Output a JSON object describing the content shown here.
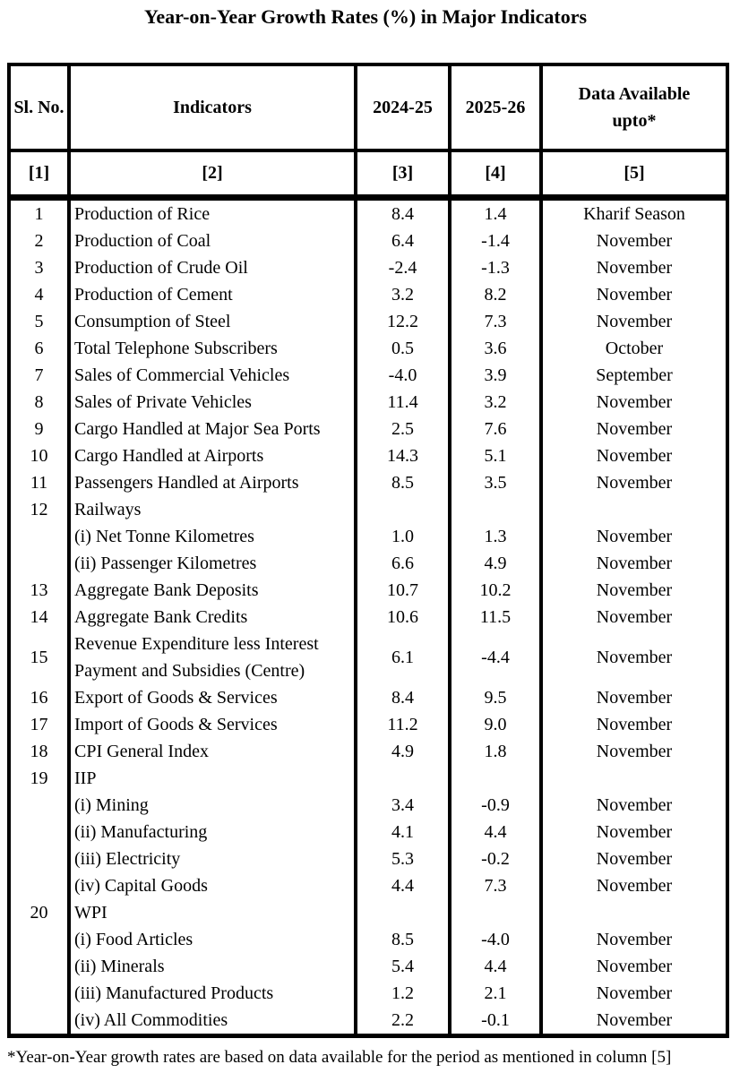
{
  "page": {
    "title": "Year-on-Year Growth Rates (%) in Major Indicators",
    "footnote": "*Year-on-Year growth rates are based on data available for the period as mentioned in column [5]"
  },
  "table": {
    "col_headers": [
      "Sl. No.",
      "Indicators",
      "2024-25",
      "2025-26",
      [
        "Data Available",
        "upto*"
      ]
    ],
    "col_numbers": [
      "[1]",
      "[2]",
      "[3]",
      "[4]",
      "[5]"
    ],
    "rows": [
      {
        "sl_no": "1",
        "indicator": "Production of Rice",
        "fy2024_25": "8.4",
        "fy2025_26": "1.4",
        "data_upto": "Kharif Season"
      },
      {
        "sl_no": "2",
        "indicator": "Production of Coal",
        "fy2024_25": "6.4",
        "fy2025_26": "-1.4",
        "data_upto": "November"
      },
      {
        "sl_no": "3",
        "indicator": "Production of Crude Oil",
        "fy2024_25": "-2.4",
        "fy2025_26": "-1.3",
        "data_upto": "November"
      },
      {
        "sl_no": "4",
        "indicator": "Production of Cement",
        "fy2024_25": "3.2",
        "fy2025_26": "8.2",
        "data_upto": "November"
      },
      {
        "sl_no": "5",
        "indicator": "Consumption of Steel",
        "fy2024_25": "12.2",
        "fy2025_26": "7.3",
        "data_upto": "November"
      },
      {
        "sl_no": "6",
        "indicator": "Total Telephone Subscribers",
        "fy2024_25": "0.5",
        "fy2025_26": "3.6",
        "data_upto": "October"
      },
      {
        "sl_no": "7",
        "indicator": "Sales of Commercial Vehicles",
        "fy2024_25": "-4.0",
        "fy2025_26": "3.9",
        "data_upto": "September"
      },
      {
        "sl_no": "8",
        "indicator": "Sales of Private Vehicles",
        "fy2024_25": "11.4",
        "fy2025_26": "3.2",
        "data_upto": "November"
      },
      {
        "sl_no": "9",
        "indicator": "Cargo Handled at Major Sea Ports",
        "fy2024_25": "2.5",
        "fy2025_26": "7.6",
        "data_upto": "November"
      },
      {
        "sl_no": "10",
        "indicator": "Cargo Handled at Airports",
        "fy2024_25": "14.3",
        "fy2025_26": "5.1",
        "data_upto": "November"
      },
      {
        "sl_no": "11",
        "indicator": "Passengers Handled at Airports",
        "fy2024_25": "8.5",
        "fy2025_26": "3.5",
        "data_upto": "November"
      },
      {
        "sl_no": "12",
        "indicator": "Railways",
        "fy2024_25": "",
        "fy2025_26": "",
        "data_upto": ""
      },
      {
        "sl_no": "",
        "indicator": "(i) Net Tonne Kilometres",
        "fy2024_25": "1.0",
        "fy2025_26": "1.3",
        "data_upto": "November"
      },
      {
        "sl_no": "",
        "indicator": "(ii) Passenger Kilometres",
        "fy2024_25": "6.6",
        "fy2025_26": "4.9",
        "data_upto": "November"
      },
      {
        "sl_no": "13",
        "indicator": "Aggregate Bank Deposits",
        "fy2024_25": "10.7",
        "fy2025_26": "10.2",
        "data_upto": "November"
      },
      {
        "sl_no": "14",
        "indicator": "Aggregate Bank Credits",
        "fy2024_25": "10.6",
        "fy2025_26": "11.5",
        "data_upto": "November"
      },
      {
        "sl_no": "15",
        "indicator": "Revenue Expenditure less Interest Payment and Subsidies (Centre)",
        "fy2024_25": "6.1",
        "fy2025_26": "-4.4",
        "data_upto": "November"
      },
      {
        "sl_no": "16",
        "indicator": "Export of Goods & Services",
        "fy2024_25": "8.4",
        "fy2025_26": "9.5",
        "data_upto": "November"
      },
      {
        "sl_no": "17",
        "indicator": "Import of Goods & Services",
        "fy2024_25": "11.2",
        "fy2025_26": "9.0",
        "data_upto": "November"
      },
      {
        "sl_no": "18",
        "indicator": "CPI General Index",
        "fy2024_25": "4.9",
        "fy2025_26": "1.8",
        "data_upto": "November"
      },
      {
        "sl_no": "19",
        "indicator": "IIP",
        "fy2024_25": "",
        "fy2025_26": "",
        "data_upto": ""
      },
      {
        "sl_no": "",
        "indicator": "(i) Mining",
        "fy2024_25": "3.4",
        "fy2025_26": "-0.9",
        "data_upto": "November"
      },
      {
        "sl_no": "",
        "indicator": "(ii) Manufacturing",
        "fy2024_25": "4.1",
        "fy2025_26": "4.4",
        "data_upto": "November"
      },
      {
        "sl_no": "",
        "indicator": "(iii) Electricity",
        "fy2024_25": "5.3",
        "fy2025_26": "-0.2",
        "data_upto": "November"
      },
      {
        "sl_no": "",
        "indicator": "(iv) Capital Goods",
        "fy2024_25": "4.4",
        "fy2025_26": "7.3",
        "data_upto": "November"
      },
      {
        "sl_no": "20",
        "indicator": "WPI",
        "fy2024_25": "",
        "fy2025_26": "",
        "data_upto": ""
      },
      {
        "sl_no": "",
        "indicator": "(i) Food Articles",
        "fy2024_25": "8.5",
        "fy2025_26": "-4.0",
        "data_upto": "November"
      },
      {
        "sl_no": "",
        "indicator": "(ii) Minerals",
        "fy2024_25": "5.4",
        "fy2025_26": "4.4",
        "data_upto": "November"
      },
      {
        "sl_no": "",
        "indicator": "(iii) Manufactured Products",
        "fy2024_25": "1.2",
        "fy2025_26": "2.1",
        "data_upto": "November"
      },
      {
        "sl_no": "",
        "indicator": "(iv) All Commodities",
        "fy2024_25": "2.2",
        "fy2025_26": "-0.1",
        "data_upto": "November"
      }
    ]
  }
}
